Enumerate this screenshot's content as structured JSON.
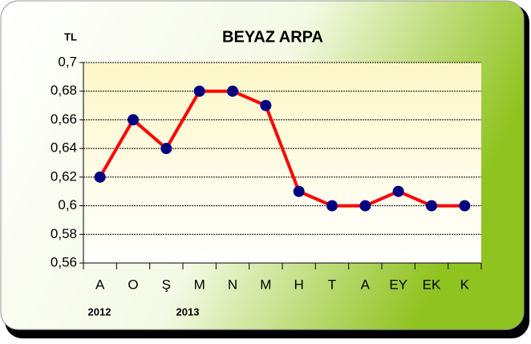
{
  "chart_data": {
    "type": "line",
    "title": "BEYAZ ARPA",
    "y_unit": "TL",
    "year_labels": [
      "2012",
      "2013"
    ],
    "categories": [
      "A",
      "O",
      "Ş",
      "M",
      "N",
      "M",
      "H",
      "T",
      "A",
      "EY",
      "EK",
      "K"
    ],
    "series": [
      {
        "name": "BEYAZ ARPA",
        "color": "#ff0000",
        "marker_color": "#000080",
        "values": [
          0.62,
          0.66,
          0.64,
          0.68,
          0.68,
          0.67,
          0.61,
          0.6,
          0.6,
          0.61,
          0.6,
          0.6
        ]
      }
    ],
    "ylim": [
      0.56,
      0.7
    ],
    "yticks": [
      {
        "value": 0.56,
        "label": "0,56"
      },
      {
        "value": 0.58,
        "label": "0,58"
      },
      {
        "value": 0.6,
        "label": "0,6"
      },
      {
        "value": 0.62,
        "label": "0,62"
      },
      {
        "value": 0.64,
        "label": "0,64"
      },
      {
        "value": 0.66,
        "label": "0,66"
      },
      {
        "value": 0.68,
        "label": "0,68"
      },
      {
        "value": 0.7,
        "label": "0,7"
      }
    ],
    "grid": true
  }
}
